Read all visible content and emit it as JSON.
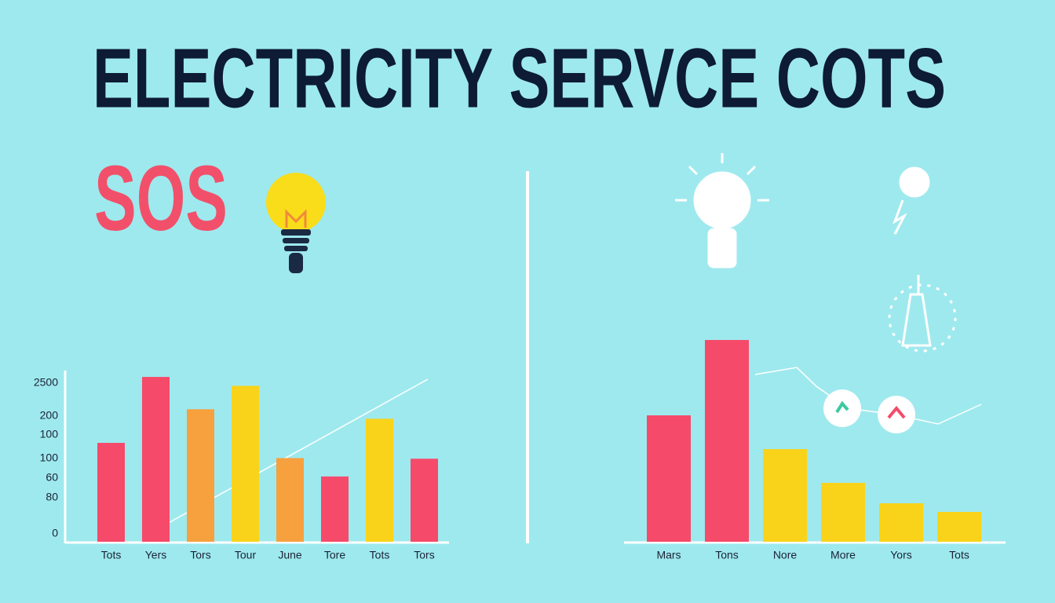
{
  "title": "ELECTRICITY SERVCE COTS",
  "badge": "SOS",
  "chart_data": [
    {
      "type": "bar",
      "categories": [
        "Tots",
        "Yers",
        "Tors",
        "Tour",
        "June",
        "Tore",
        "Tots",
        "Tors"
      ],
      "values": [
        1560,
        2600,
        2090,
        2460,
        1320,
        1030,
        1940,
        1310
      ],
      "colors": [
        "#f64a6a",
        "#f64a6a",
        "#f7a03e",
        "#f9d31a",
        "#f7a03e",
        "#f64a6a",
        "#f9d31a",
        "#f64a6a"
      ],
      "ylim": [
        0,
        2700
      ],
      "y_axis_labels": [
        "2500",
        "200",
        "100",
        "100",
        "60",
        "80",
        "0"
      ]
    },
    {
      "type": "bar",
      "categories": [
        "Mars",
        "Tons",
        "Nore",
        "More",
        "Yors",
        "Tots"
      ],
      "values": [
        161,
        257,
        118,
        75,
        49,
        38
      ],
      "colors": [
        "#f64a6a",
        "#f64a6a",
        "#f9d31a",
        "#f9d31a",
        "#f9d31a",
        "#f9d31a"
      ],
      "ylim": [
        0,
        260
      ]
    }
  ]
}
